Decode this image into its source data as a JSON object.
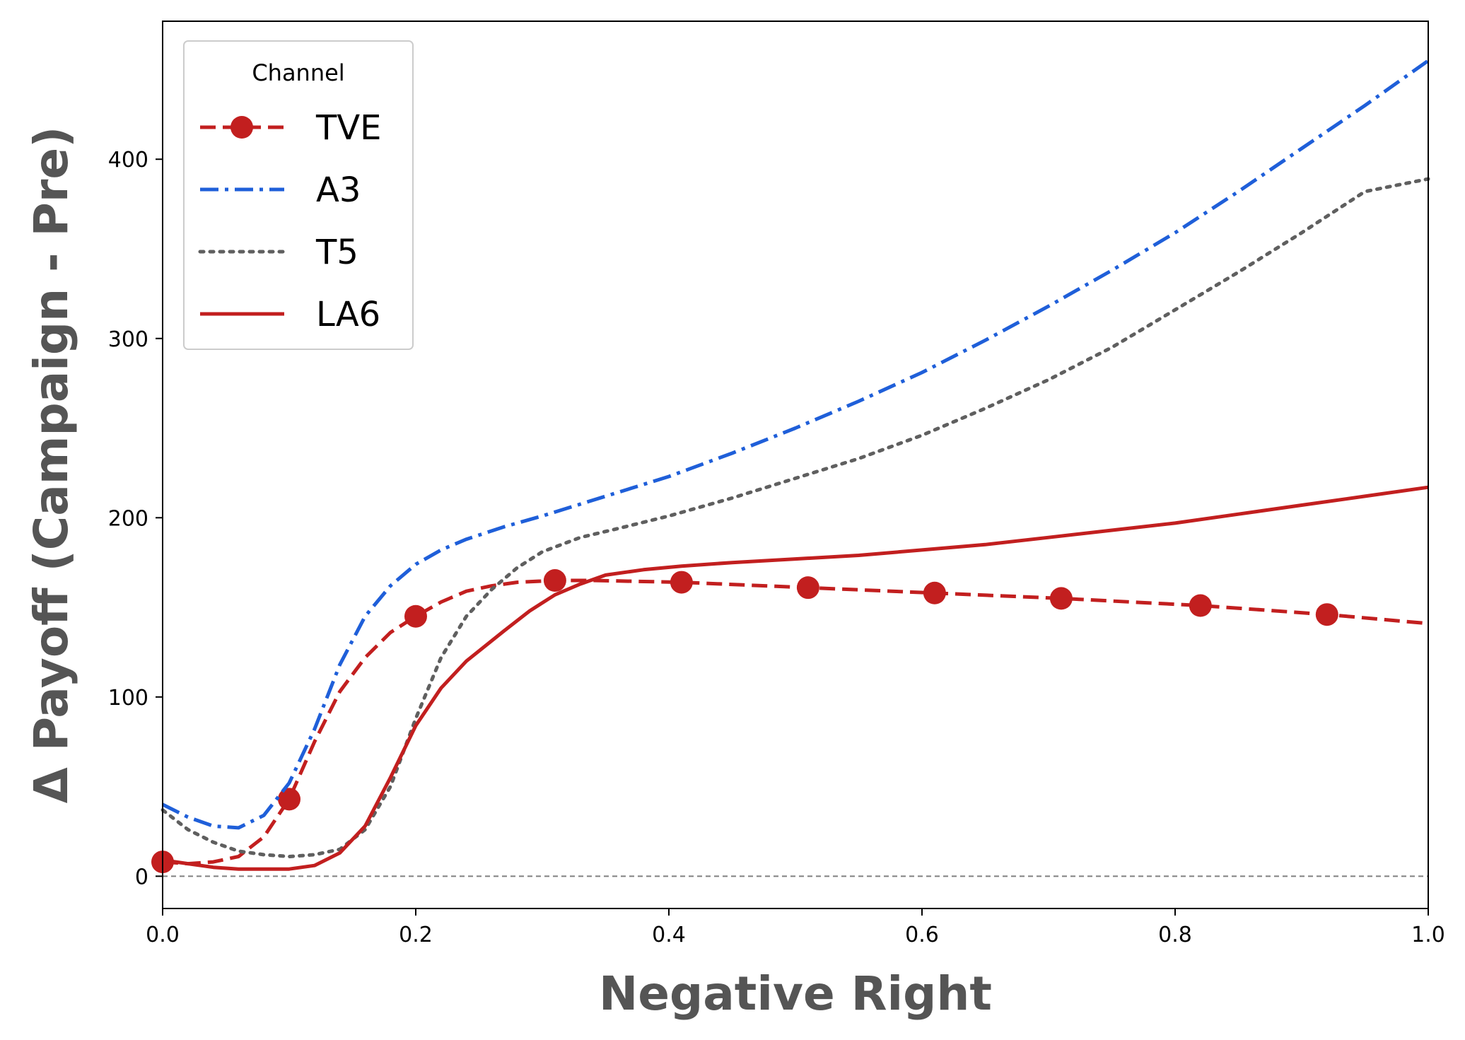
{
  "chart_data": {
    "type": "line",
    "xlabel": "Negative Right",
    "ylabel": "Δ Payoff (Campaign - Pre)",
    "xlim": [
      0,
      1
    ],
    "ylim": [
      -18,
      477
    ],
    "x_ticks": [
      0,
      0.2,
      0.4,
      0.6,
      0.8,
      1
    ],
    "x_tick_labels": [
      "0.0",
      "0.2",
      "0.4",
      "0.6",
      "0.8",
      "1.0"
    ],
    "y_ticks": [
      0,
      100,
      200,
      300,
      400
    ],
    "y_tick_labels": [
      "0",
      "100",
      "200",
      "300",
      "400"
    ],
    "grid": false,
    "legend": {
      "title": "Channel",
      "placement": "top-left"
    },
    "reference_line": {
      "y": 0,
      "style": "dashed",
      "color": "#808080"
    },
    "series": [
      {
        "name": "TVE",
        "color": "#C21F1F",
        "style": "dashed",
        "marker": "circle",
        "x": [
          0,
          0.02,
          0.04,
          0.06,
          0.08,
          0.1,
          0.12,
          0.14,
          0.16,
          0.18,
          0.2,
          0.22,
          0.24,
          0.26,
          0.28,
          0.31,
          0.34,
          0.41,
          0.51,
          0.61,
          0.71,
          0.82,
          0.92,
          1.0
        ],
        "y": [
          8,
          7,
          8,
          11,
          22,
          43,
          75,
          103,
          122,
          136,
          145,
          153,
          159,
          162,
          164,
          165,
          165,
          164,
          161,
          158,
          155,
          151,
          146,
          141
        ],
        "marker_x": [
          0,
          0.1,
          0.2,
          0.31,
          0.41,
          0.51,
          0.61,
          0.71,
          0.82,
          0.92
        ],
        "marker_y": [
          8,
          43,
          145,
          165,
          164,
          161,
          158,
          155,
          151,
          146
        ]
      },
      {
        "name": "A3",
        "color": "#1F5FD9",
        "style": "dashdot",
        "x": [
          0,
          0.02,
          0.04,
          0.06,
          0.08,
          0.1,
          0.12,
          0.14,
          0.16,
          0.18,
          0.2,
          0.22,
          0.24,
          0.27,
          0.3,
          0.35,
          0.4,
          0.45,
          0.5,
          0.55,
          0.6,
          0.65,
          0.7,
          0.75,
          0.8,
          0.85,
          0.9,
          0.95,
          1.0
        ],
        "y": [
          40,
          33,
          28,
          27,
          34,
          52,
          82,
          118,
          145,
          162,
          174,
          182,
          188,
          195,
          201,
          212,
          223,
          236,
          250,
          265,
          281,
          299,
          318,
          338,
          359,
          382,
          406,
          430,
          455
        ]
      },
      {
        "name": "T5",
        "color": "#5F5F5F",
        "style": "dotted",
        "x": [
          0,
          0.02,
          0.04,
          0.06,
          0.08,
          0.1,
          0.12,
          0.14,
          0.16,
          0.18,
          0.2,
          0.22,
          0.24,
          0.26,
          0.28,
          0.3,
          0.33,
          0.36,
          0.4,
          0.45,
          0.5,
          0.55,
          0.6,
          0.65,
          0.7,
          0.75,
          0.8,
          0.85,
          0.9,
          0.95,
          1.0
        ],
        "y": [
          37,
          26,
          19,
          14,
          12,
          11,
          12,
          15,
          26,
          50,
          88,
          122,
          145,
          160,
          172,
          181,
          189,
          194,
          201,
          211,
          222,
          233,
          246,
          261,
          277,
          295,
          316,
          337,
          359,
          382,
          389
        ]
      },
      {
        "name": "LA6",
        "color": "#C21F1F",
        "style": "solid",
        "x": [
          0,
          0.02,
          0.04,
          0.06,
          0.08,
          0.1,
          0.12,
          0.14,
          0.16,
          0.18,
          0.2,
          0.22,
          0.24,
          0.27,
          0.29,
          0.31,
          0.33,
          0.35,
          0.38,
          0.41,
          0.45,
          0.5,
          0.55,
          0.6,
          0.65,
          0.7,
          0.75,
          0.8,
          0.85,
          0.9,
          0.95,
          1.0
        ],
        "y": [
          9,
          7,
          5,
          4,
          4,
          4,
          6,
          13,
          28,
          55,
          84,
          105,
          120,
          137,
          148,
          157,
          163,
          168,
          171,
          173,
          175,
          177,
          179,
          182,
          185,
          189,
          193,
          197,
          202,
          207,
          212,
          217
        ]
      }
    ]
  }
}
